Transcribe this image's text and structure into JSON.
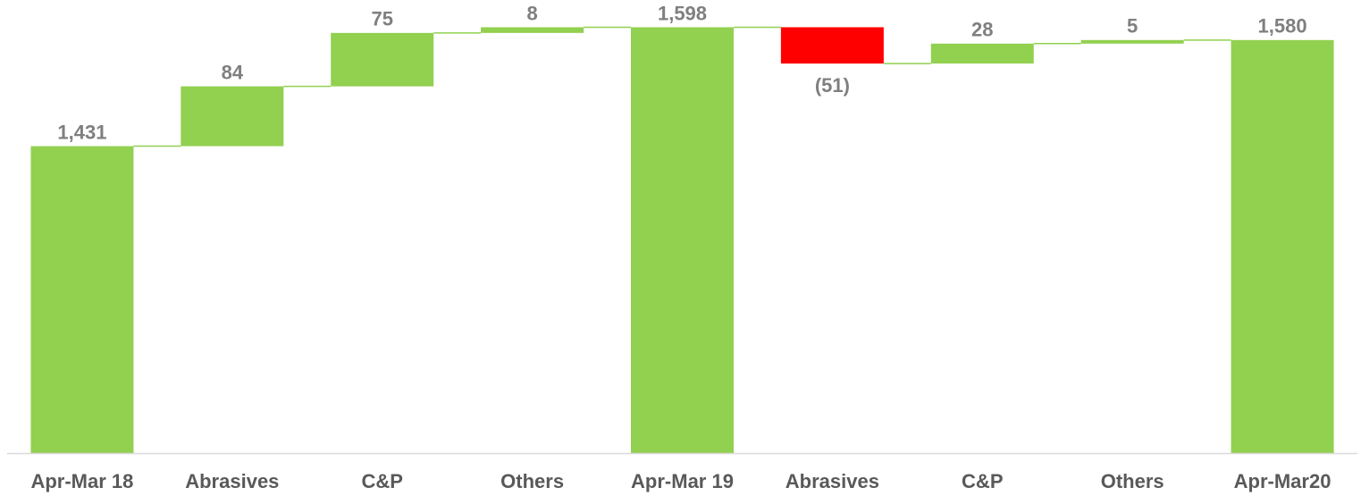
{
  "chart_data": {
    "type": "waterfall",
    "categories": [
      "Apr-Mar 18",
      "Abrasives",
      "C&P",
      "Others",
      "Apr-Mar 19",
      "Abrasives",
      "C&P",
      "Others",
      "Apr-Mar20"
    ],
    "values": [
      1431,
      84,
      75,
      8,
      1598,
      -51,
      28,
      5,
      1580
    ],
    "value_labels": [
      "1,431",
      "84",
      "75",
      "8",
      "1,598",
      "(51)",
      "28",
      "5",
      "1,580"
    ],
    "totals": [
      true,
      false,
      false,
      false,
      true,
      false,
      false,
      false,
      true
    ],
    "increase_color": "#92d050",
    "decrease_color": "#ff0000",
    "ylim": [
      1000,
      1640
    ]
  }
}
